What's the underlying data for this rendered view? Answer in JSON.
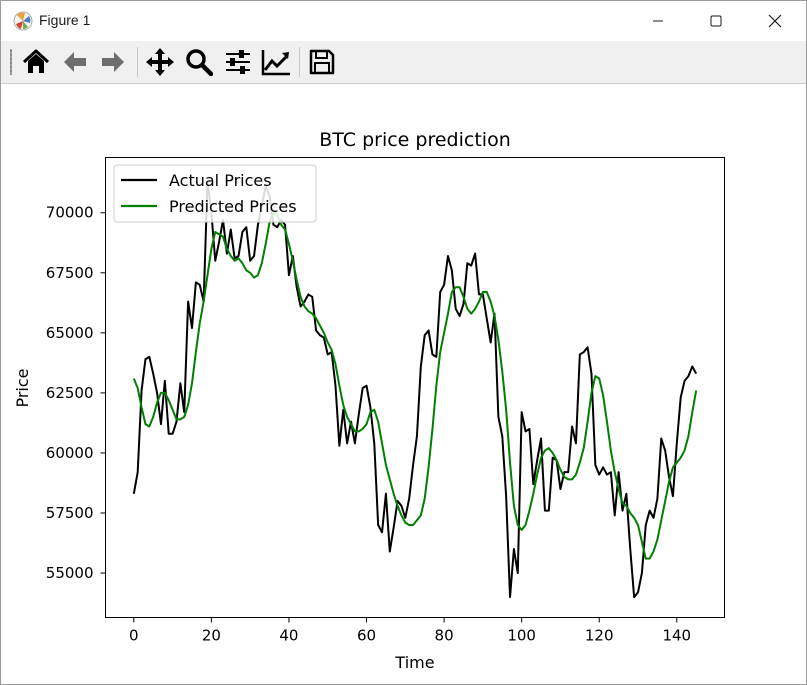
{
  "window": {
    "title": "Figure 1"
  },
  "toolbar": {
    "buttons": [
      {
        "name": "home-icon",
        "tooltip": "Home"
      },
      {
        "name": "back-arrow-icon",
        "tooltip": "Back"
      },
      {
        "name": "forward-arrow-icon",
        "tooltip": "Forward"
      },
      {
        "name": "pan-icon",
        "tooltip": "Pan"
      },
      {
        "name": "zoom-icon",
        "tooltip": "Zoom"
      },
      {
        "name": "configure-subplots-icon",
        "tooltip": "Subplots"
      },
      {
        "name": "edit-axis-icon",
        "tooltip": "Customize"
      },
      {
        "name": "save-icon",
        "tooltip": "Save"
      }
    ]
  },
  "chart_data": {
    "type": "line",
    "title": "BTC price prediction",
    "xlabel": "Time",
    "ylabel": "Price",
    "xlim": [
      -7.3,
      152.3
    ],
    "ylim": [
      53150,
      72300
    ],
    "xticks": [
      0,
      20,
      40,
      60,
      80,
      100,
      120,
      140
    ],
    "yticks": [
      55000,
      57500,
      60000,
      62500,
      65000,
      67500,
      70000
    ],
    "legend_position": "upper-left",
    "grid": false,
    "series": [
      {
        "name": "Actual Prices",
        "color": "#000000",
        "x": [
          0,
          1,
          2,
          3,
          4,
          5,
          6,
          7,
          8,
          9,
          10,
          11,
          12,
          13,
          14,
          15,
          16,
          17,
          18,
          19,
          20,
          21,
          22,
          23,
          24,
          25,
          26,
          27,
          28,
          29,
          30,
          31,
          32,
          33,
          34,
          35,
          36,
          37,
          38,
          39,
          40,
          41,
          42,
          43,
          44,
          45,
          46,
          47,
          48,
          49,
          50,
          51,
          52,
          53,
          54,
          55,
          56,
          57,
          58,
          59,
          60,
          61,
          62,
          63,
          64,
          65,
          66,
          67,
          68,
          69,
          70,
          71,
          72,
          73,
          74,
          75,
          76,
          77,
          78,
          79,
          80,
          81,
          82,
          83,
          84,
          85,
          86,
          87,
          88,
          89,
          90,
          91,
          92,
          93,
          94,
          95,
          96,
          97,
          98,
          99,
          100,
          101,
          102,
          103,
          104,
          105,
          106,
          107,
          108,
          109,
          110,
          111,
          112,
          113,
          114,
          115,
          116,
          117,
          118,
          119,
          120,
          121,
          122,
          123,
          124,
          125,
          126,
          127,
          128,
          129,
          130,
          131,
          132,
          133,
          134,
          135,
          136,
          137,
          138,
          139,
          140,
          141,
          142,
          143,
          144,
          145
        ],
        "values": [
          58300,
          59200,
          62600,
          63900,
          64000,
          63300,
          62500,
          61200,
          63000,
          60800,
          60800,
          61300,
          62900,
          61700,
          66300,
          65200,
          67100,
          67000,
          66300,
          71300,
          70000,
          68000,
          68800,
          69700,
          68300,
          69300,
          68100,
          68200,
          69200,
          69400,
          68000,
          68200,
          69500,
          70300,
          71100,
          70700,
          69500,
          69400,
          69700,
          69500,
          67400,
          68200,
          66900,
          66100,
          66300,
          66600,
          66500,
          65100,
          64900,
          64800,
          64100,
          64200,
          62800,
          60300,
          61800,
          60400,
          61300,
          60400,
          61600,
          62700,
          62800,
          61900,
          60400,
          57000,
          56700,
          58300,
          55900,
          56900,
          58000,
          57800,
          57300,
          58100,
          59500,
          60700,
          63600,
          64900,
          65100,
          64100,
          64000,
          66700,
          67000,
          68200,
          67600,
          66000,
          65700,
          66200,
          67900,
          67800,
          68300,
          66600,
          66600,
          65600,
          64600,
          65800,
          61500,
          60700,
          58200,
          54000,
          56000,
          55000,
          61700,
          60900,
          61000,
          58700,
          59700,
          60600,
          57600,
          57600,
          59800,
          59700,
          58500,
          59200,
          59200,
          61100,
          60400,
          64100,
          64200,
          64400,
          63300,
          59500,
          59100,
          59400,
          59100,
          59200,
          57400,
          59200,
          57600,
          58300,
          56000,
          54000,
          54200,
          55000,
          57000,
          57600,
          57300,
          58100,
          60600,
          60100,
          59000,
          58200,
          60400,
          62300,
          63000,
          63200,
          63600,
          63300
        ]
      },
      {
        "name": "Predicted Prices",
        "color": "#008000",
        "x": [
          0,
          1,
          2,
          3,
          4,
          5,
          6,
          7,
          8,
          9,
          10,
          11,
          12,
          13,
          14,
          15,
          16,
          17,
          18,
          19,
          20,
          21,
          22,
          23,
          24,
          25,
          26,
          27,
          28,
          29,
          30,
          31,
          32,
          33,
          34,
          35,
          36,
          37,
          38,
          39,
          40,
          41,
          42,
          43,
          44,
          45,
          46,
          47,
          48,
          49,
          50,
          51,
          52,
          53,
          54,
          55,
          56,
          57,
          58,
          59,
          60,
          61,
          62,
          63,
          64,
          65,
          66,
          67,
          68,
          69,
          70,
          71,
          72,
          73,
          74,
          75,
          76,
          77,
          78,
          79,
          80,
          81,
          82,
          83,
          84,
          85,
          86,
          87,
          88,
          89,
          90,
          91,
          92,
          93,
          94,
          95,
          96,
          97,
          98,
          99,
          100,
          101,
          102,
          103,
          104,
          105,
          106,
          107,
          108,
          109,
          110,
          111,
          112,
          113,
          114,
          115,
          116,
          117,
          118,
          119,
          120,
          121,
          122,
          123,
          124,
          125,
          126,
          127,
          128,
          129,
          130,
          131,
          132,
          133,
          134,
          135,
          136,
          137,
          138,
          139,
          140,
          141,
          142,
          143,
          144,
          145
        ],
        "values": [
          63100,
          62700,
          61900,
          61200,
          61100,
          61500,
          62100,
          62500,
          62500,
          62200,
          61800,
          61400,
          61400,
          61500,
          62000,
          62900,
          64200,
          65400,
          66300,
          67400,
          68500,
          69200,
          69100,
          69000,
          68500,
          68200,
          68000,
          68100,
          67900,
          67600,
          67500,
          67300,
          67400,
          67900,
          68700,
          69600,
          70000,
          69900,
          69500,
          69300,
          68700,
          68000,
          67200,
          66500,
          66100,
          65900,
          65800,
          65600,
          65300,
          65000,
          64600,
          64300,
          63700,
          62800,
          62000,
          61500,
          61200,
          60900,
          60900,
          61000,
          61200,
          61700,
          61800,
          61300,
          60400,
          59500,
          58900,
          58300,
          57800,
          57400,
          57100,
          57000,
          57000,
          57200,
          57400,
          58100,
          59400,
          61000,
          62800,
          64200,
          65000,
          65800,
          66700,
          66900,
          66900,
          66500,
          66000,
          65800,
          66000,
          66300,
          66700,
          66700,
          66300,
          65700,
          64700,
          63400,
          61800,
          59600,
          57800,
          57000,
          56800,
          57000,
          57600,
          58300,
          59100,
          59800,
          60100,
          60200,
          60000,
          59700,
          59300,
          59000,
          58900,
          58900,
          59100,
          59600,
          60200,
          61300,
          62500,
          63200,
          63100,
          62400,
          61300,
          60100,
          59200,
          58500,
          57900,
          57800,
          57500,
          57300,
          57000,
          56300,
          55600,
          55600,
          55900,
          56400,
          57200,
          58000,
          58800,
          59400,
          59600,
          59800,
          60100,
          60700,
          61700,
          62600
        ]
      }
    ]
  }
}
